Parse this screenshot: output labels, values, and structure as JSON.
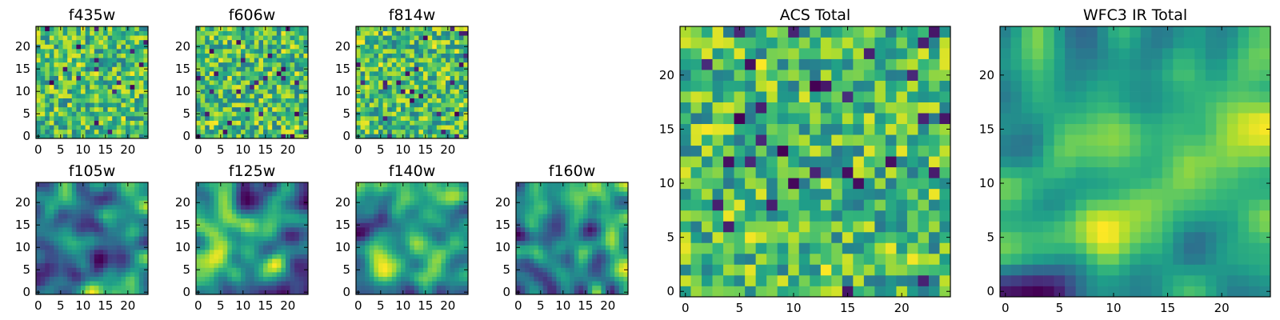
{
  "chart_data": [
    {
      "type": "heatmap",
      "title": "f435w",
      "x_ticks": [
        0,
        5,
        10,
        15,
        20
      ],
      "y_ticks": [
        0,
        5,
        10,
        15,
        20
      ],
      "grid_size": 25,
      "colormap": "viridis",
      "texture": "noise",
      "seed": 11
    },
    {
      "type": "heatmap",
      "title": "f606w",
      "x_ticks": [
        0,
        5,
        10,
        15,
        20
      ],
      "y_ticks": [
        0,
        5,
        10,
        15,
        20
      ],
      "grid_size": 25,
      "colormap": "viridis",
      "texture": "noise",
      "seed": 23
    },
    {
      "type": "heatmap",
      "title": "f814w",
      "x_ticks": [
        0,
        5,
        10,
        15,
        20
      ],
      "y_ticks": [
        0,
        5,
        10,
        15,
        20
      ],
      "grid_size": 25,
      "colormap": "viridis",
      "texture": "noise",
      "seed": 37
    },
    {
      "type": "heatmap",
      "title": "f105w",
      "x_ticks": [
        0,
        5,
        10,
        15,
        20
      ],
      "y_ticks": [
        0,
        5,
        10,
        15,
        20
      ],
      "grid_size": 25,
      "colormap": "viridis",
      "texture": "smooth",
      "seed": 41
    },
    {
      "type": "heatmap",
      "title": "f125w",
      "x_ticks": [
        0,
        5,
        10,
        15,
        20
      ],
      "y_ticks": [
        0,
        5,
        10,
        15,
        20
      ],
      "grid_size": 25,
      "colormap": "viridis",
      "texture": "smooth",
      "seed": 53
    },
    {
      "type": "heatmap",
      "title": "f140w",
      "x_ticks": [
        0,
        5,
        10,
        15,
        20
      ],
      "y_ticks": [
        0,
        5,
        10,
        15,
        20
      ],
      "grid_size": 25,
      "colormap": "viridis",
      "texture": "smooth",
      "seed": 67
    },
    {
      "type": "heatmap",
      "title": "f160w",
      "x_ticks": [
        0,
        5,
        10,
        15,
        20
      ],
      "y_ticks": [
        0,
        5,
        10,
        15,
        20
      ],
      "grid_size": 25,
      "colormap": "viridis",
      "texture": "smooth",
      "seed": 79
    },
    {
      "type": "heatmap",
      "title": "ACS Total",
      "x_ticks": [
        0,
        5,
        10,
        15,
        20
      ],
      "y_ticks": [
        0,
        5,
        10,
        15,
        20
      ],
      "grid_size": 25,
      "colormap": "viridis",
      "texture": "noise",
      "seed": 83
    },
    {
      "type": "heatmap",
      "title": "WFC3 IR Total",
      "x_ticks": [
        0,
        5,
        10,
        15,
        20
      ],
      "y_ticks": [
        0,
        5,
        10,
        15,
        20
      ],
      "grid_size": 25,
      "colormap": "viridis",
      "texture": "smooth",
      "seed": 97
    }
  ]
}
